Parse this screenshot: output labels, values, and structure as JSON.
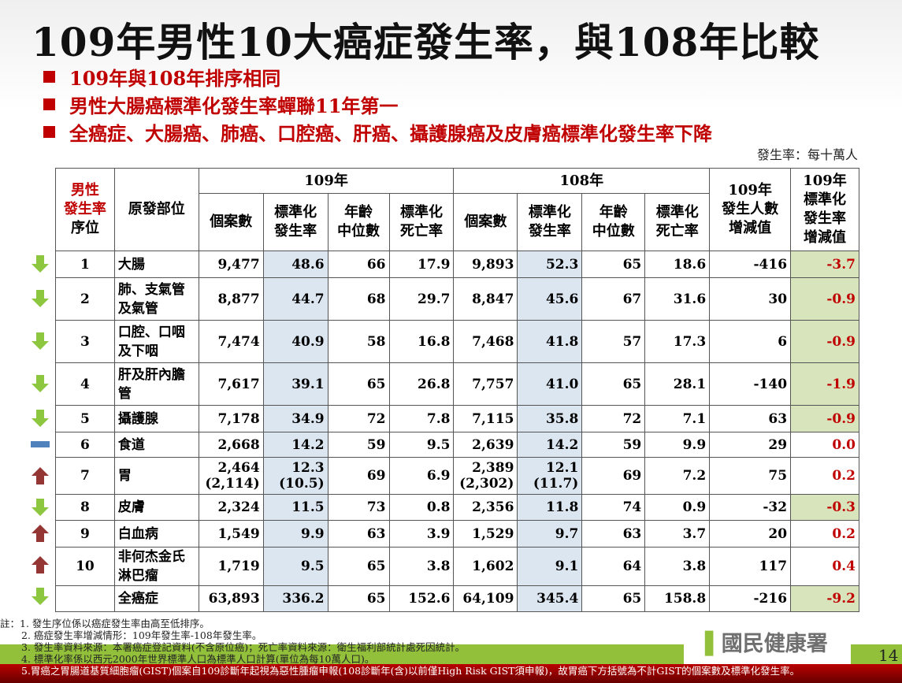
{
  "title": "109年男性10大癌症發生率，與108年比較",
  "bullets": [
    "109年與108年排序相同",
    "男性大腸癌標準化發生率蟬聯11年第一",
    "全癌症、大腸癌、肺癌、口腔癌、肝癌、攝護腺癌及皮膚癌標準化發生率下降"
  ],
  "unit": "發生率：每十萬人",
  "headers": {
    "rank_red": "男性\n發生率",
    "rank": "序位",
    "site": "原發部位",
    "y109": "109年",
    "y108": "108年",
    "cases": "個案數",
    "std_inc": "標準化\n發生率",
    "median_age": "年齡\n中位數",
    "std_mort": "標準化\n死亡率",
    "diff_cases": "109年\n發生人數\n增減值",
    "diff_rate": "109年\n標準化\n發生率\n增減值"
  },
  "rows": [
    {
      "rank": "1",
      "site": "大腸",
      "c109": "9,477",
      "i109": "48.6",
      "a109": "66",
      "m109": "17.9",
      "c108": "9,893",
      "i108": "52.3",
      "a108": "65",
      "m108": "18.6",
      "dc": "-416",
      "di": "-3.7",
      "trend": "down"
    },
    {
      "rank": "2",
      "site": "肺、支氣管\n及氣管",
      "c109": "8,877",
      "i109": "44.7",
      "a109": "68",
      "m109": "29.7",
      "c108": "8,847",
      "i108": "45.6",
      "a108": "67",
      "m108": "31.6",
      "dc": "30",
      "di": "-0.9",
      "trend": "down"
    },
    {
      "rank": "3",
      "site": "口腔、口咽\n及下咽",
      "c109": "7,474",
      "i109": "40.9",
      "a109": "58",
      "m109": "16.8",
      "c108": "7,468",
      "i108": "41.8",
      "a108": "57",
      "m108": "17.3",
      "dc": "6",
      "di": "-0.9",
      "trend": "down"
    },
    {
      "rank": "4",
      "site": "肝及肝內膽\n管",
      "c109": "7,617",
      "i109": "39.1",
      "a109": "65",
      "m109": "26.8",
      "c108": "7,757",
      "i108": "41.0",
      "a108": "65",
      "m108": "28.1",
      "dc": "-140",
      "di": "-1.9",
      "trend": "down"
    },
    {
      "rank": "5",
      "site": "攝護腺",
      "c109": "7,178",
      "i109": "34.9",
      "a109": "72",
      "m109": "7.8",
      "c108": "7,115",
      "i108": "35.8",
      "a108": "72",
      "m108": "7.1",
      "dc": "63",
      "di": "-0.9",
      "trend": "down"
    },
    {
      "rank": "6",
      "site": "食道",
      "c109": "2,668",
      "i109": "14.2",
      "a109": "59",
      "m109": "9.5",
      "c108": "2,639",
      "i108": "14.2",
      "a108": "59",
      "m108": "9.9",
      "dc": "29",
      "di": "0.0",
      "trend": "same"
    },
    {
      "rank": "7",
      "site": "胃",
      "c109": "2,464\n(2,114)",
      "i109": "12.3\n(10.5)",
      "a109": "69",
      "m109": "6.9",
      "c108": "2,389\n(2,302)",
      "i108": "12.1\n(11.7)",
      "a108": "69",
      "m108": "7.2",
      "dc": "75",
      "di": "0.2",
      "trend": "up"
    },
    {
      "rank": "8",
      "site": "皮膚",
      "c109": "2,324",
      "i109": "11.5",
      "a109": "73",
      "m109": "0.8",
      "c108": "2,356",
      "i108": "11.8",
      "a108": "74",
      "m108": "0.9",
      "dc": "-32",
      "di": "-0.3",
      "trend": "down"
    },
    {
      "rank": "9",
      "site": "白血病",
      "c109": "1,549",
      "i109": "9.9",
      "a109": "63",
      "m109": "3.9",
      "c108": "1,529",
      "i108": "9.7",
      "a108": "63",
      "m108": "3.7",
      "dc": "20",
      "di": "0.2",
      "trend": "up"
    },
    {
      "rank": "10",
      "site": "非何杰金氏\n淋巴瘤",
      "c109": "1,719",
      "i109": "9.5",
      "a109": "65",
      "m109": "3.8",
      "c108": "1,602",
      "i108": "9.1",
      "a108": "64",
      "m108": "3.8",
      "dc": "117",
      "di": "0.4",
      "trend": "up"
    },
    {
      "rank": "",
      "site": "全癌症",
      "c109": "63,893",
      "i109": "336.2",
      "a109": "65",
      "m109": "152.6",
      "c108": "64,109",
      "i108": "345.4",
      "a108": "65",
      "m108": "158.8",
      "dc": "-216",
      "di": "-9.2",
      "trend": "down"
    }
  ],
  "notes": [
    "註：1. 發生序位係以癌症發生率由高至低排序。",
    "2. 癌症發生率增減情形：109年發生率-108年發生率。",
    "3. 發生率資料來源：本署癌症登記資料(不含原位癌)；死亡率資料來源：衛生福利部統計處死因統計。",
    "4. 標準化率係以西元2000年世界標準人口為標準人口計算(單位為每10萬人口)。",
    "5.胃癌之胃腸道基質細胞瘤(GIST)個案自109診斷年起視為惡性腫瘤申報(108診斷年(含)以前僅High Risk GIST須申報)，故胃癌下方括號為不計GIST的個案數及標準化發生率。"
  ],
  "logo": "國民健康署",
  "page": "14",
  "colors": {
    "red": "#c00000",
    "green_bar": "#92c03a",
    "blue_cell": "#dce6f1",
    "green_cell": "#d8e4bc",
    "arrow_down": "#8dc63f",
    "arrow_up": "#943634",
    "same": "#4f81bd"
  }
}
